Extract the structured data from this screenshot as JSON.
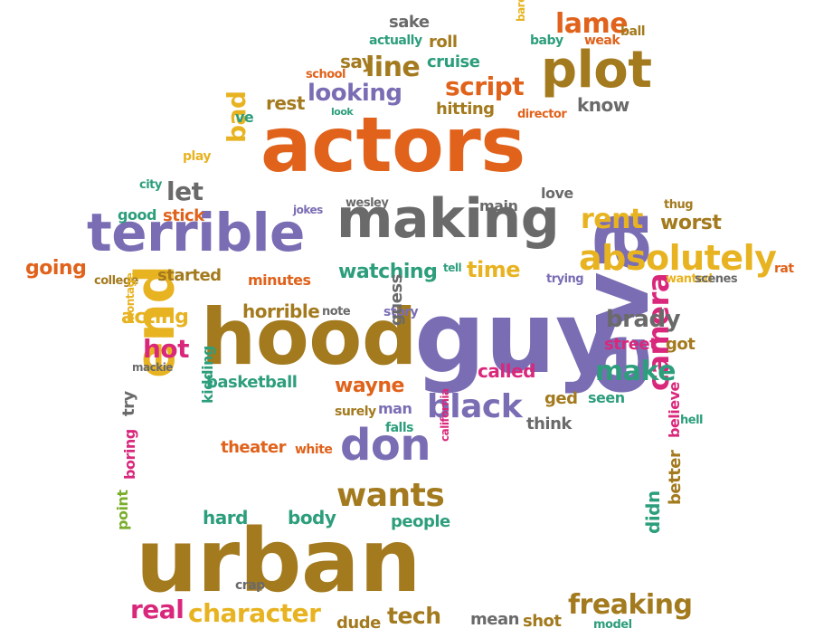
{
  "palette": {
    "orange": "#e0621b",
    "purple": "#7a6db4",
    "brown": "#a37a1e",
    "gray": "#6a6a6a",
    "gold": "#e8b321",
    "green": "#2d9e7c",
    "pink": "#d9287b",
    "lime": "#79ad2a"
  },
  "words": [
    {
      "text": "actors",
      "color": "orange"
    },
    {
      "text": "guy",
      "color": "purple"
    },
    {
      "text": "urban",
      "color": "brown"
    },
    {
      "text": "hood",
      "color": "brown"
    },
    {
      "text": "eva",
      "color": "purple"
    },
    {
      "text": "end",
      "color": "gold"
    },
    {
      "text": "terrible",
      "color": "purple"
    },
    {
      "text": "making",
      "color": "gray"
    },
    {
      "text": "plot",
      "color": "brown"
    },
    {
      "text": "absolutely",
      "color": "gold"
    },
    {
      "text": "don",
      "color": "purple"
    },
    {
      "text": "black",
      "color": "purple"
    },
    {
      "text": "wants",
      "color": "brown"
    },
    {
      "text": "camera",
      "color": "pink"
    },
    {
      "text": "freaking",
      "color": "brown"
    },
    {
      "text": "character",
      "color": "gold"
    },
    {
      "text": "real",
      "color": "pink"
    },
    {
      "text": "tech",
      "color": "brown"
    },
    {
      "text": "brady",
      "color": "gray"
    },
    {
      "text": "make",
      "color": "green"
    },
    {
      "text": "lame",
      "color": "orange"
    },
    {
      "text": "rent",
      "color": "gold"
    },
    {
      "text": "line",
      "color": "brown"
    },
    {
      "text": "script",
      "color": "orange"
    },
    {
      "text": "looking",
      "color": "purple"
    },
    {
      "text": "worst",
      "color": "brown"
    },
    {
      "text": "time",
      "color": "gold"
    },
    {
      "text": "watching",
      "color": "green"
    },
    {
      "text": "let",
      "color": "gray"
    },
    {
      "text": "bad",
      "color": "gold"
    },
    {
      "text": "going",
      "color": "orange"
    },
    {
      "text": "started",
      "color": "brown"
    },
    {
      "text": "minutes",
      "color": "orange"
    },
    {
      "text": "cruise",
      "color": "green"
    },
    {
      "text": "hitting",
      "color": "brown"
    },
    {
      "text": "know",
      "color": "gray"
    },
    {
      "text": "say",
      "color": "brown"
    },
    {
      "text": "rest",
      "color": "brown"
    },
    {
      "text": "ve",
      "color": "green"
    },
    {
      "text": "sake",
      "color": "gray"
    },
    {
      "text": "actually",
      "color": "green"
    },
    {
      "text": "roll",
      "color": "brown"
    },
    {
      "text": "barely",
      "color": "gold"
    },
    {
      "text": "baby",
      "color": "green"
    },
    {
      "text": "weak",
      "color": "orange"
    },
    {
      "text": "ball",
      "color": "brown"
    },
    {
      "text": "school",
      "color": "orange"
    },
    {
      "text": "look",
      "color": "green"
    },
    {
      "text": "director",
      "color": "orange"
    },
    {
      "text": "play",
      "color": "gold"
    },
    {
      "text": "city",
      "color": "green"
    },
    {
      "text": "good",
      "color": "green"
    },
    {
      "text": "stick",
      "color": "orange"
    },
    {
      "text": "jokes",
      "color": "purple"
    },
    {
      "text": "wesley",
      "color": "gray"
    },
    {
      "text": "main",
      "color": "gray"
    },
    {
      "text": "love",
      "color": "gray"
    },
    {
      "text": "thug",
      "color": "brown"
    },
    {
      "text": "college",
      "color": "brown"
    },
    {
      "text": "tell",
      "color": "green"
    },
    {
      "text": "trying",
      "color": "purple"
    },
    {
      "text": "wanted",
      "color": "gold"
    },
    {
      "text": "scenes",
      "color": "gray"
    },
    {
      "text": "rat",
      "color": "orange"
    },
    {
      "text": "acting",
      "color": "gold"
    },
    {
      "text": "horrible",
      "color": "brown"
    },
    {
      "text": "note",
      "color": "gray"
    },
    {
      "text": "story",
      "color": "purple"
    },
    {
      "text": "hot",
      "color": "pink"
    },
    {
      "text": "montage",
      "color": "gold"
    },
    {
      "text": "mackie",
      "color": "gray"
    },
    {
      "text": "basketball",
      "color": "green"
    },
    {
      "text": "guess",
      "color": "gray"
    },
    {
      "text": "called",
      "color": "pink"
    },
    {
      "text": "street",
      "color": "pink"
    },
    {
      "text": "got",
      "color": "brown"
    },
    {
      "text": "wayne",
      "color": "orange"
    },
    {
      "text": "ged",
      "color": "brown"
    },
    {
      "text": "seen",
      "color": "green"
    },
    {
      "text": "surely",
      "color": "brown"
    },
    {
      "text": "man",
      "color": "purple"
    },
    {
      "text": "falls",
      "color": "green"
    },
    {
      "text": "think",
      "color": "gray"
    },
    {
      "text": "hell",
      "color": "green"
    },
    {
      "text": "try",
      "color": "gray"
    },
    {
      "text": "kidding",
      "color": "green"
    },
    {
      "text": "theater",
      "color": "orange"
    },
    {
      "text": "white",
      "color": "orange"
    },
    {
      "text": "california",
      "color": "pink"
    },
    {
      "text": "believe",
      "color": "pink"
    },
    {
      "text": "boring",
      "color": "pink"
    },
    {
      "text": "hard",
      "color": "green"
    },
    {
      "text": "body",
      "color": "green"
    },
    {
      "text": "people",
      "color": "green"
    },
    {
      "text": "better",
      "color": "brown"
    },
    {
      "text": "point",
      "color": "lime"
    },
    {
      "text": "didn",
      "color": "green"
    },
    {
      "text": "crap",
      "color": "gray"
    },
    {
      "text": "dude",
      "color": "brown"
    },
    {
      "text": "mean",
      "color": "gray"
    },
    {
      "text": "shot",
      "color": "brown"
    },
    {
      "text": "model",
      "color": "green"
    }
  ]
}
